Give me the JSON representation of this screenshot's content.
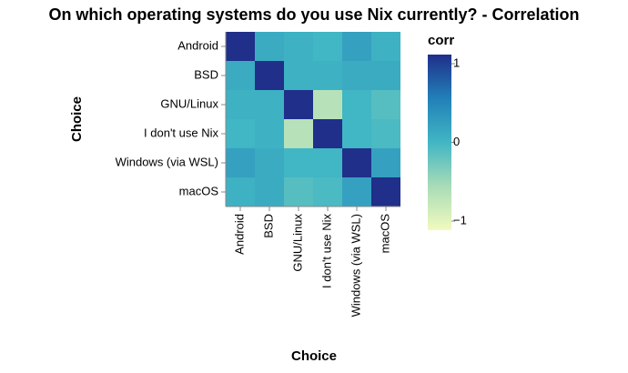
{
  "chart_data": {
    "type": "heatmap",
    "title": "On which operating systems do you use Nix currently? - Correlation",
    "x_label": "Choice",
    "y_label": "Choice",
    "x_categories": [
      "Android",
      "BSD",
      "GNU/Linux",
      "I don't use Nix",
      "Windows (via WSL)",
      "macOS"
    ],
    "y_categories": [
      "Android",
      "BSD",
      "GNU/Linux",
      "I don't use Nix",
      "Windows (via WSL)",
      "macOS"
    ],
    "values": [
      [
        1,
        0.1,
        0.05,
        0.0,
        0.2,
        0.05
      ],
      [
        0.1,
        1,
        0.05,
        0.05,
        0.1,
        0.1
      ],
      [
        0.05,
        0.05,
        1,
        -0.6,
        0.0,
        -0.1
      ],
      [
        0.0,
        0.05,
        -0.6,
        1,
        0.0,
        -0.05
      ],
      [
        0.2,
        0.1,
        0.0,
        0.0,
        1,
        0.2
      ],
      [
        0.05,
        0.1,
        -0.1,
        -0.05,
        0.2,
        1
      ]
    ],
    "legend_title": "corr",
    "zlim": [
      -1,
      1
    ],
    "zticks": [
      {
        "value": -1,
        "label": "−1"
      },
      0,
      1
    ],
    "colorscale": [
      "#f2fabf",
      "#a8dcb7",
      "#41b6c4",
      "#2280b8",
      "#1f2f8a"
    ]
  }
}
